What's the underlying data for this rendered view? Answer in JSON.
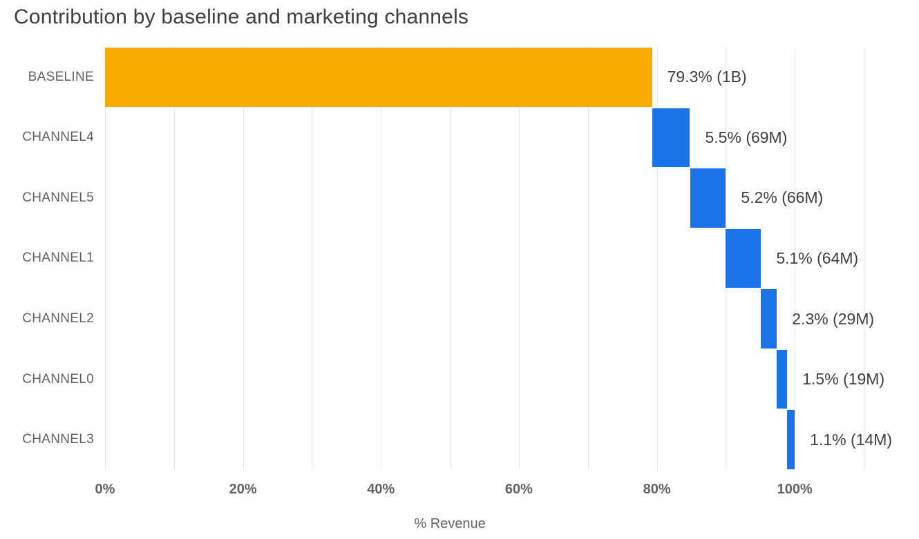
{
  "page": {
    "title": "Contribution by baseline and marketing channels"
  },
  "chart_data": {
    "type": "bar",
    "variant": "horizontal-waterfall",
    "title": "Contribution by baseline and marketing channels",
    "xlabel": "% Revenue",
    "ylabel": "",
    "xlim": [
      0,
      114
    ],
    "grid": "vertical",
    "legend": "none",
    "gridline_values": [
      0,
      10,
      20,
      30,
      40,
      50,
      60,
      70,
      80,
      90,
      100,
      110
    ],
    "x_ticks": [
      {
        "value": 0,
        "label": "0%"
      },
      {
        "value": 20,
        "label": "20%"
      },
      {
        "value": 40,
        "label": "40%"
      },
      {
        "value": 60,
        "label": "60%"
      },
      {
        "value": 80,
        "label": "80%"
      },
      {
        "value": 100,
        "label": "100%"
      }
    ],
    "categories": [
      "BASELINE",
      "CHANNEL4",
      "CHANNEL5",
      "CHANNEL1",
      "CHANNEL2",
      "CHANNEL0",
      "CHANNEL3"
    ],
    "bars": [
      {
        "category": "BASELINE",
        "start": 0,
        "end": 79.3,
        "value_pct": 79.3,
        "value_label": "79.3% (1B)",
        "color": "#F9AB00"
      },
      {
        "category": "CHANNEL4",
        "start": 79.3,
        "end": 84.8,
        "value_pct": 5.5,
        "value_label": "5.5% (69M)",
        "color": "#1A73E8"
      },
      {
        "category": "CHANNEL5",
        "start": 84.8,
        "end": 90.0,
        "value_pct": 5.2,
        "value_label": "5.2% (66M)",
        "color": "#1A73E8"
      },
      {
        "category": "CHANNEL1",
        "start": 90.0,
        "end": 95.1,
        "value_pct": 5.1,
        "value_label": "5.1% (64M)",
        "color": "#1A73E8"
      },
      {
        "category": "CHANNEL2",
        "start": 95.1,
        "end": 97.4,
        "value_pct": 2.3,
        "value_label": "2.3% (29M)",
        "color": "#1A73E8"
      },
      {
        "category": "CHANNEL0",
        "start": 97.4,
        "end": 98.9,
        "value_pct": 1.5,
        "value_label": "1.5% (19M)",
        "color": "#1A73E8"
      },
      {
        "category": "CHANNEL3",
        "start": 98.9,
        "end": 100.0,
        "value_pct": 1.1,
        "value_label": "1.1% (14M)",
        "color": "#1A73E8"
      }
    ],
    "colors": {
      "baseline_bar": "#F9AB00",
      "channel_bar": "#1A73E8",
      "gridline": "#E3E7EA",
      "title_text": "#3C4043",
      "value_text": "#3C4043",
      "axis_text": "#5F6368"
    }
  }
}
